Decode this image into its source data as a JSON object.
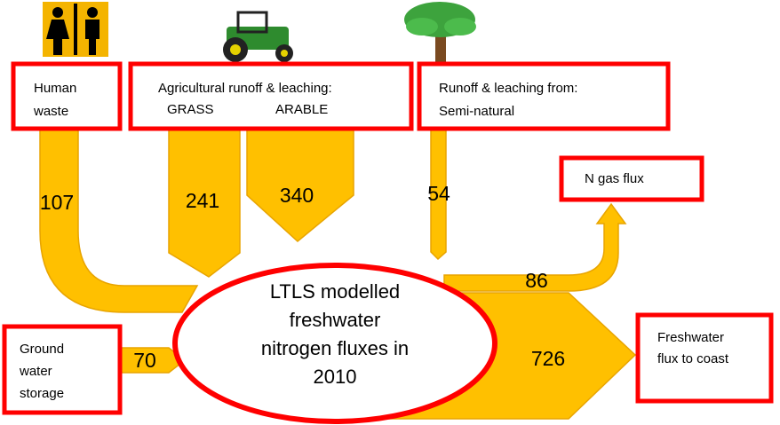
{
  "nodes": [
    {
      "lines": [
        "Human",
        "waste"
      ]
    },
    {
      "lines": [
        "Agricultural runoff & leaching:",
        "GRASS",
        "ARABLE"
      ]
    },
    {
      "lines": [
        "Runoff & leaching from:",
        "Semi-natural"
      ]
    },
    {
      "lines": [
        "N gas flux"
      ]
    },
    {
      "lines": [
        "Ground",
        "water",
        "storage"
      ]
    },
    {
      "lines": [
        "Freshwater",
        "flux to coast"
      ]
    }
  ],
  "center": {
    "lines": [
      "LTLS modelled",
      "freshwater",
      "nitrogen fluxes in",
      "2010"
    ]
  },
  "flows": [
    {
      "value": 107
    },
    {
      "value": 241
    },
    {
      "value": 340
    },
    {
      "value": 54
    },
    {
      "value": 86
    },
    {
      "value": 70
    },
    {
      "value": 726
    }
  ]
}
